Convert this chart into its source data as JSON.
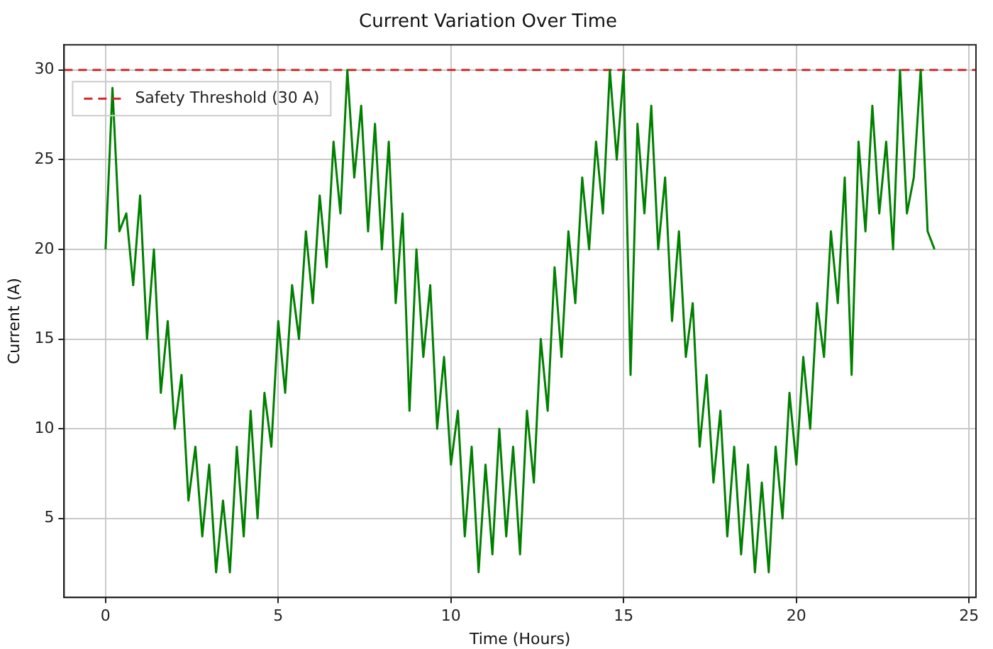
{
  "chart_data": {
    "type": "line",
    "title": "Current Variation Over Time",
    "xlabel": "Time (Hours)",
    "ylabel": "Current (A)",
    "x": [
      0,
      0.2,
      0.4,
      0.6,
      0.8,
      1,
      1.2,
      1.4,
      1.6,
      1.8,
      2,
      2.2,
      2.4,
      2.6,
      2.8,
      3,
      3.2,
      3.4,
      3.6,
      3.8,
      4,
      4.2,
      4.4,
      4.6,
      4.8,
      5,
      5.2,
      5.4,
      5.6,
      5.8,
      6,
      6.2,
      6.4,
      6.6,
      6.8,
      7,
      7.2,
      7.4,
      7.6,
      7.8,
      8,
      8.2,
      8.4,
      8.6,
      8.8,
      9,
      9.2,
      9.4,
      9.6,
      9.8,
      10,
      10.2,
      10.4,
      10.6,
      10.8,
      11,
      11.2,
      11.4,
      11.6,
      11.8,
      12,
      12.2,
      12.4,
      12.6,
      12.8,
      13,
      13.2,
      13.4,
      13.6,
      13.8,
      14,
      14.2,
      14.4,
      14.6,
      14.8,
      15,
      15.2,
      15.4,
      15.6,
      15.8,
      16,
      16.2,
      16.4,
      16.6,
      16.8,
      17,
      17.2,
      17.4,
      17.6,
      17.8,
      18,
      18.2,
      18.4,
      18.6,
      18.8,
      19,
      19.2,
      19.4,
      19.6,
      19.8,
      20,
      20.2,
      20.4,
      20.6,
      20.8,
      21,
      21.2,
      21.4,
      21.6,
      21.8,
      22,
      22.2,
      22.4,
      22.6,
      22.8,
      23,
      23.2,
      23.4,
      23.6,
      23.8,
      24
    ],
    "series": [
      {
        "color": "#008000",
        "values": [
          20,
          29,
          21,
          22,
          18,
          23,
          15,
          20,
          12,
          16,
          10,
          13,
          6,
          9,
          4,
          8,
          2,
          6,
          2,
          9,
          4,
          11,
          5,
          12,
          9,
          16,
          12,
          18,
          15,
          21,
          17,
          23,
          19,
          26,
          22,
          30,
          24,
          28,
          21,
          27,
          20,
          26,
          17,
          22,
          11,
          20,
          14,
          18,
          10,
          14,
          8,
          11,
          4,
          9,
          2,
          8,
          3,
          10,
          4,
          9,
          3,
          11,
          7,
          15,
          11,
          19,
          14,
          21,
          17,
          24,
          20,
          26,
          22,
          30,
          25,
          30,
          13,
          27,
          22,
          28,
          20,
          24,
          16,
          21,
          14,
          17,
          9,
          13,
          7,
          11,
          4,
          9,
          3,
          8,
          2,
          7,
          2,
          9,
          5,
          12,
          8,
          14,
          10,
          17,
          14,
          21,
          17,
          24,
          13,
          26,
          21,
          28,
          22,
          26,
          20,
          30,
          22,
          24,
          30,
          21,
          20
        ]
      }
    ],
    "ref_lines": [
      {
        "axis": "y",
        "value": 30,
        "label": "Safety Threshold (30 A)",
        "color": "#d62728",
        "line_style": "dashed"
      }
    ],
    "xlim": [
      -1.2,
      25.2
    ],
    "xticks": [
      0,
      5,
      10,
      15,
      20,
      25
    ],
    "ylim": [
      0.6,
      31.4
    ],
    "yticks": [
      5,
      10,
      15,
      20,
      25,
      30
    ],
    "grid": true,
    "legend": "top left"
  }
}
